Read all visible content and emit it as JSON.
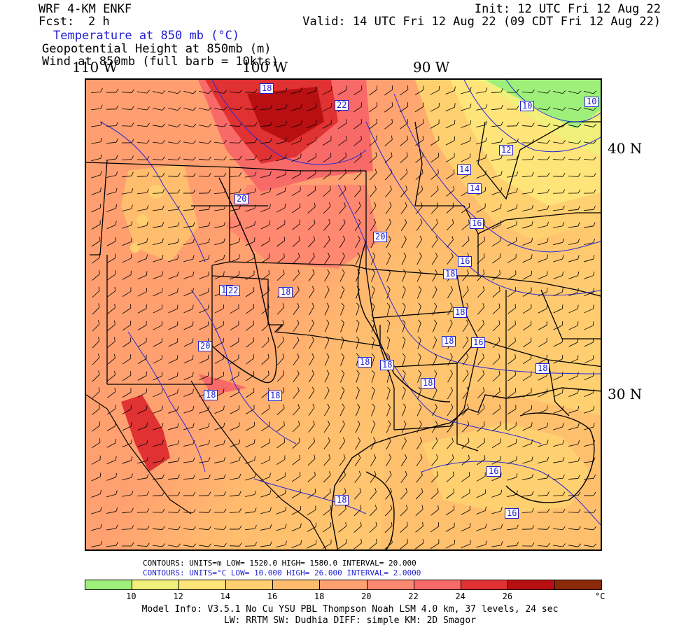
{
  "header": {
    "model": "WRF 4-KM ENKF",
    "fcst_label": "Fcst:",
    "fcst_value": "2 h",
    "init": "Init: 12 UTC Fri 12 Aug 22",
    "valid": "Valid: 14 UTC Fri 12 Aug 22 (09 CDT Fri 12 Aug 22)",
    "field1": "Temperature at 850 mb (°C)",
    "field2": "Geopotential Height at 850mb (m)",
    "field3": "Wind at 850mb (full barb = 10kts)"
  },
  "map": {
    "lon_labels": [
      "110 W",
      "100 W",
      "90 W"
    ],
    "lat_labels": [
      "40 N",
      "30 N"
    ],
    "contour_labels": [
      "10",
      "10",
      "12",
      "14",
      "14",
      "16",
      "16",
      "18",
      "20",
      "20",
      "22",
      "18",
      "18",
      "18",
      "18",
      "18",
      "18",
      "16",
      "18",
      "18",
      "18",
      "16",
      "16",
      "18",
      "20",
      "18",
      "18",
      "22"
    ]
  },
  "stats": {
    "height_line": "CONTOURS:  UNITS=m  LOW=   1520.0      HIGH=  1580.0      INTERVAL=    20.000",
    "temp_line": "CONTOURS:  UNITS=°C  LOW=   10.000      HIGH=  26.000      INTERVAL=    2.0000"
  },
  "colorbar": {
    "colors": [
      "#9ef07a",
      "#f0f07a",
      "#ffe47a",
      "#ffd070",
      "#ffbc6e",
      "#ffa070",
      "#ff8870",
      "#f86a68",
      "#e03232",
      "#b80f12",
      "#8a2a08"
    ],
    "ticks": [
      "10",
      "12",
      "14",
      "16",
      "18",
      "20",
      "22",
      "24",
      "26"
    ],
    "unit": "°C"
  },
  "footer": {
    "line1": "Model Info: V3.5.1    No Cu    YSU PBL   Thompson     Noah LSM  4.0 km,  37 levels,    24 sec",
    "line2": "LW: RRTM SW: Dudhia  DIFF: simple KM: 2D Smagor"
  }
}
